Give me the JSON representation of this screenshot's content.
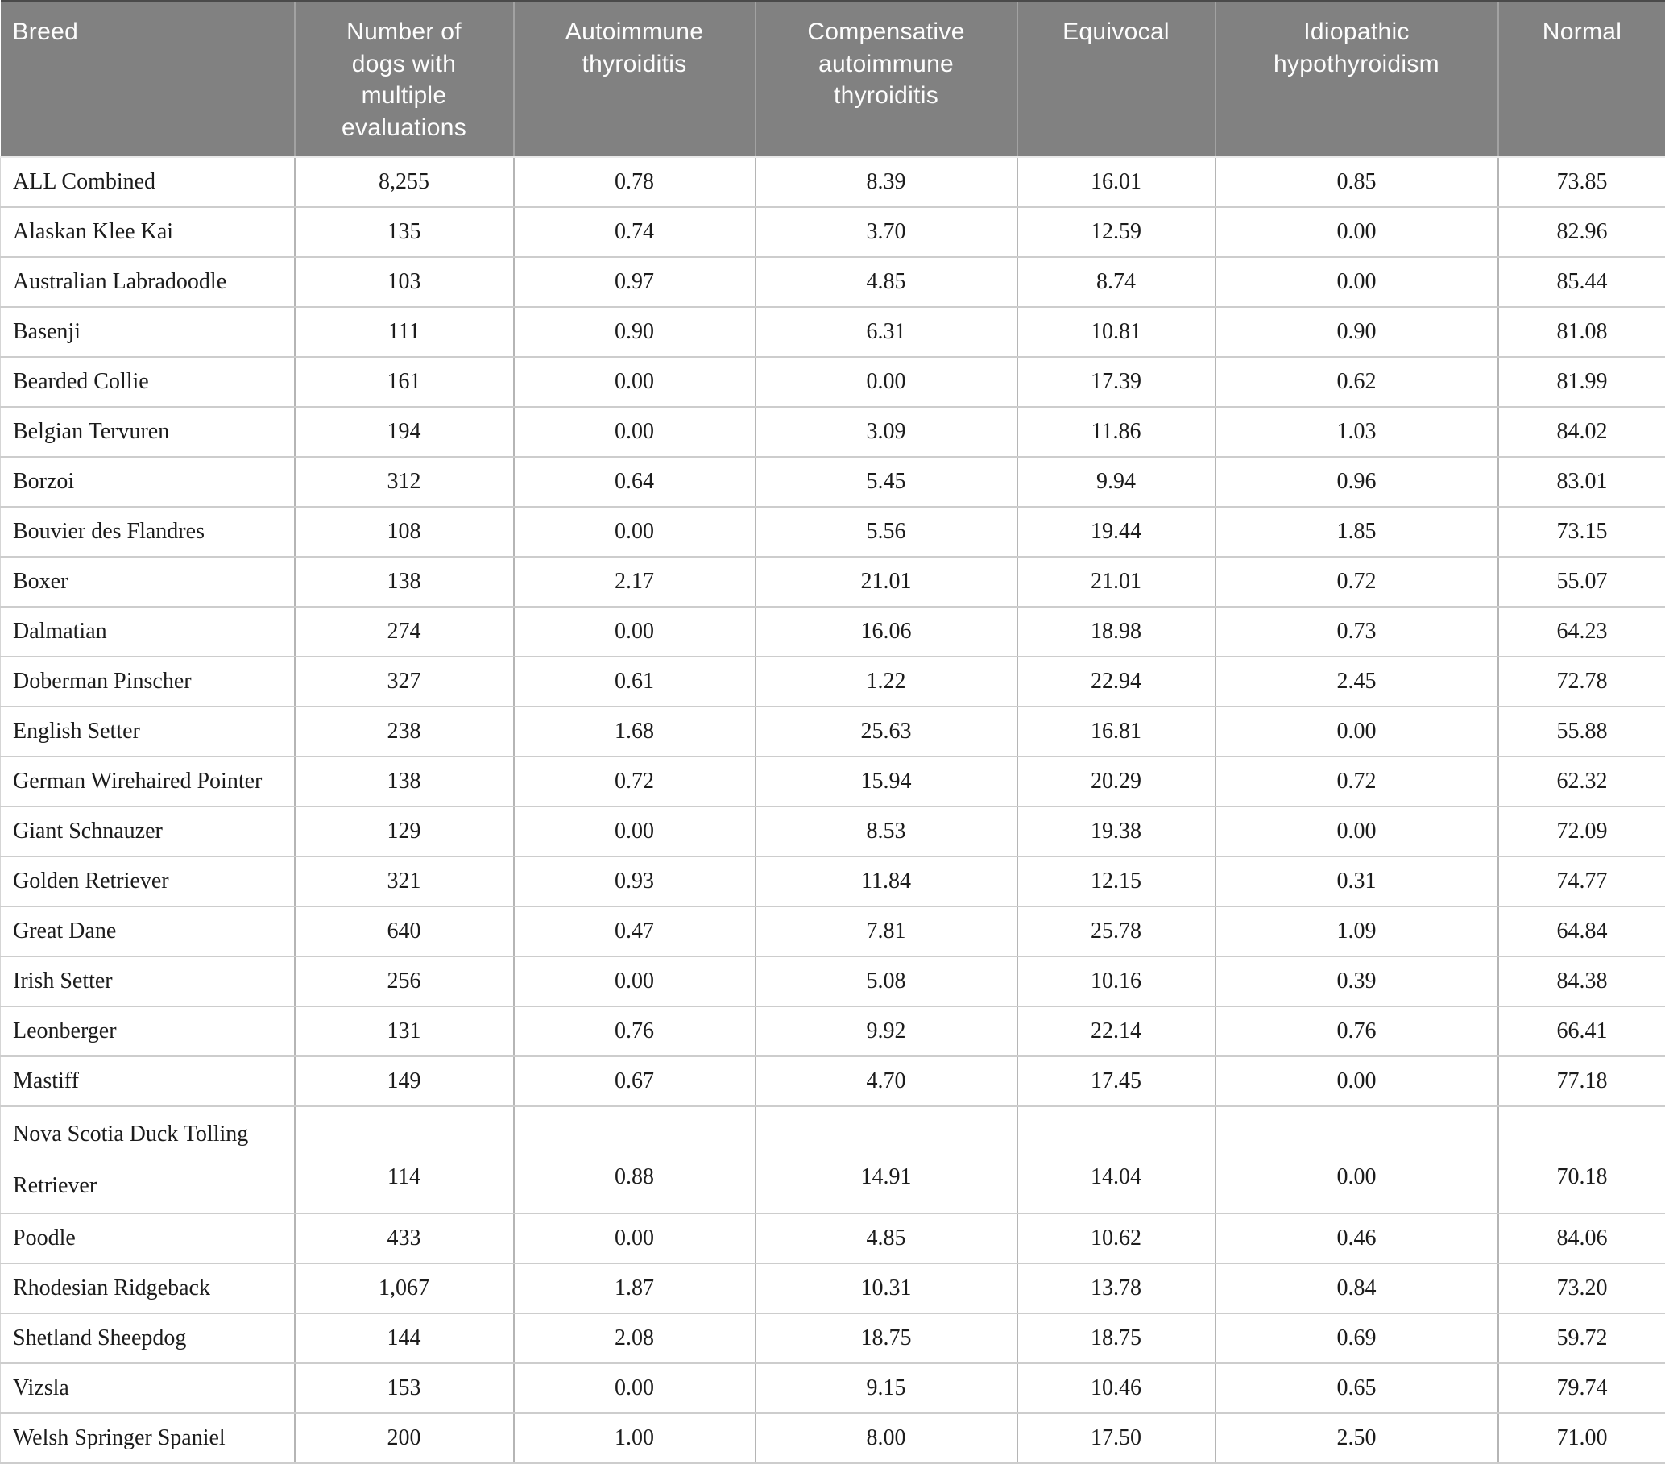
{
  "table": {
    "columns": [
      "Breed",
      "Number of dogs with multiple evaluations",
      "Autoimmune thyroiditis",
      "Compensative autoimmune thyroiditis",
      "Equivocal",
      "Idiopathic hypothyroidism",
      "Normal"
    ],
    "rows": [
      {
        "breed": "ALL Combined",
        "values": [
          "8,255",
          "0.78",
          "8.39",
          "16.01",
          "0.85",
          "73.85"
        ]
      },
      {
        "breed": "Alaskan Klee Kai",
        "values": [
          "135",
          "0.74",
          "3.70",
          "12.59",
          "0.00",
          "82.96"
        ]
      },
      {
        "breed": "Australian Labradoodle",
        "values": [
          "103",
          "0.97",
          "4.85",
          "8.74",
          "0.00",
          "85.44"
        ]
      },
      {
        "breed": "Basenji",
        "values": [
          "111",
          "0.90",
          "6.31",
          "10.81",
          "0.90",
          "81.08"
        ]
      },
      {
        "breed": "Bearded Collie",
        "values": [
          "161",
          "0.00",
          "0.00",
          "17.39",
          "0.62",
          "81.99"
        ]
      },
      {
        "breed": "Belgian Tervuren",
        "values": [
          "194",
          "0.00",
          "3.09",
          "11.86",
          "1.03",
          "84.02"
        ]
      },
      {
        "breed": "Borzoi",
        "values": [
          "312",
          "0.64",
          "5.45",
          "9.94",
          "0.96",
          "83.01"
        ]
      },
      {
        "breed": "Bouvier des Flandres",
        "values": [
          "108",
          "0.00",
          "5.56",
          "19.44",
          "1.85",
          "73.15"
        ]
      },
      {
        "breed": "Boxer",
        "values": [
          "138",
          "2.17",
          "21.01",
          "21.01",
          "0.72",
          "55.07"
        ]
      },
      {
        "breed": "Dalmatian",
        "values": [
          "274",
          "0.00",
          "16.06",
          "18.98",
          "0.73",
          "64.23"
        ]
      },
      {
        "breed": "Doberman Pinscher",
        "values": [
          "327",
          "0.61",
          "1.22",
          "22.94",
          "2.45",
          "72.78"
        ]
      },
      {
        "breed": "English Setter",
        "values": [
          "238",
          "1.68",
          "25.63",
          "16.81",
          "0.00",
          "55.88"
        ]
      },
      {
        "breed": "German Wirehaired Pointer",
        "values": [
          "138",
          "0.72",
          "15.94",
          "20.29",
          "0.72",
          "62.32"
        ]
      },
      {
        "breed": "Giant Schnauzer",
        "values": [
          "129",
          "0.00",
          "8.53",
          "19.38",
          "0.00",
          "72.09"
        ]
      },
      {
        "breed": "Golden Retriever",
        "values": [
          "321",
          "0.93",
          "11.84",
          "12.15",
          "0.31",
          "74.77"
        ]
      },
      {
        "breed": "Great Dane",
        "values": [
          "640",
          "0.47",
          "7.81",
          "25.78",
          "1.09",
          "64.84"
        ]
      },
      {
        "breed": "Irish Setter",
        "values": [
          "256",
          "0.00",
          "5.08",
          "10.16",
          "0.39",
          "84.38"
        ]
      },
      {
        "breed": "Leonberger",
        "values": [
          "131",
          "0.76",
          "9.92",
          "22.14",
          "0.76",
          "66.41"
        ]
      },
      {
        "breed": "Mastiff",
        "values": [
          "149",
          "0.67",
          "4.70",
          "17.45",
          "0.00",
          "77.18"
        ]
      },
      {
        "breed": "Nova Scotia Duck Tolling Retriever",
        "values": [
          "114",
          "0.88",
          "14.91",
          "14.04",
          "0.00",
          "70.18"
        ]
      },
      {
        "breed": "Poodle",
        "values": [
          "433",
          "0.00",
          "4.85",
          "10.62",
          "0.46",
          "84.06"
        ]
      },
      {
        "breed": "Rhodesian Ridgeback",
        "values": [
          "1,067",
          "1.87",
          "10.31",
          "13.78",
          "0.84",
          "73.20"
        ]
      },
      {
        "breed": "Shetland Sheepdog",
        "values": [
          "144",
          "2.08",
          "18.75",
          "18.75",
          "0.69",
          "59.72"
        ]
      },
      {
        "breed": "Vizsla",
        "values": [
          "153",
          "0.00",
          "9.15",
          "10.46",
          "0.65",
          "79.74"
        ]
      },
      {
        "breed": "Welsh Springer Spaniel",
        "values": [
          "200",
          "1.00",
          "8.00",
          "17.50",
          "2.50",
          "71.00"
        ]
      }
    ]
  },
  "colors": {
    "header_background": "#818181",
    "header_text": "#fdfdfd",
    "header_divider": "#a2a2a2",
    "header_top_edge": "#4a4a4a",
    "body_text": "#1c1c1c",
    "row_border": "#cdcdcd",
    "column_border": "#b5b5b5",
    "background": "#ffffff"
  }
}
